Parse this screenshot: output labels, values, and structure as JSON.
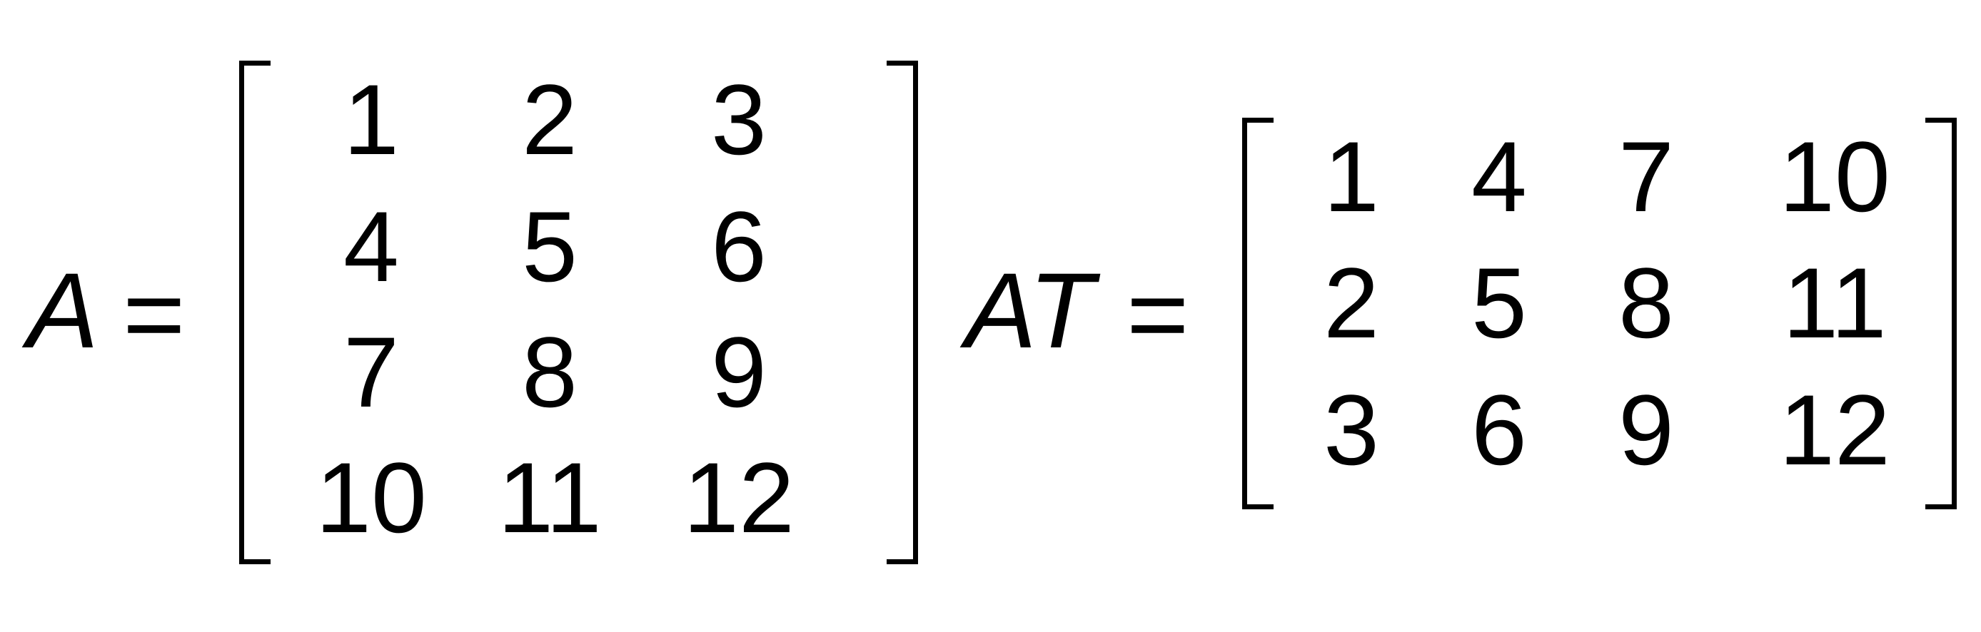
{
  "equation_1": {
    "lhs": "A",
    "equals": "=",
    "matrix": [
      [
        "1",
        "2",
        "3"
      ],
      [
        "4",
        "5",
        "6"
      ],
      [
        "7",
        "8",
        "9"
      ],
      [
        "10",
        "11",
        "12"
      ]
    ]
  },
  "equation_2": {
    "lhs": "AT",
    "equals": "=",
    "matrix": [
      [
        "1",
        "4",
        "7",
        "10"
      ],
      [
        "2",
        "5",
        "8",
        "11"
      ],
      [
        "3",
        "6",
        "9",
        "12"
      ]
    ]
  }
}
